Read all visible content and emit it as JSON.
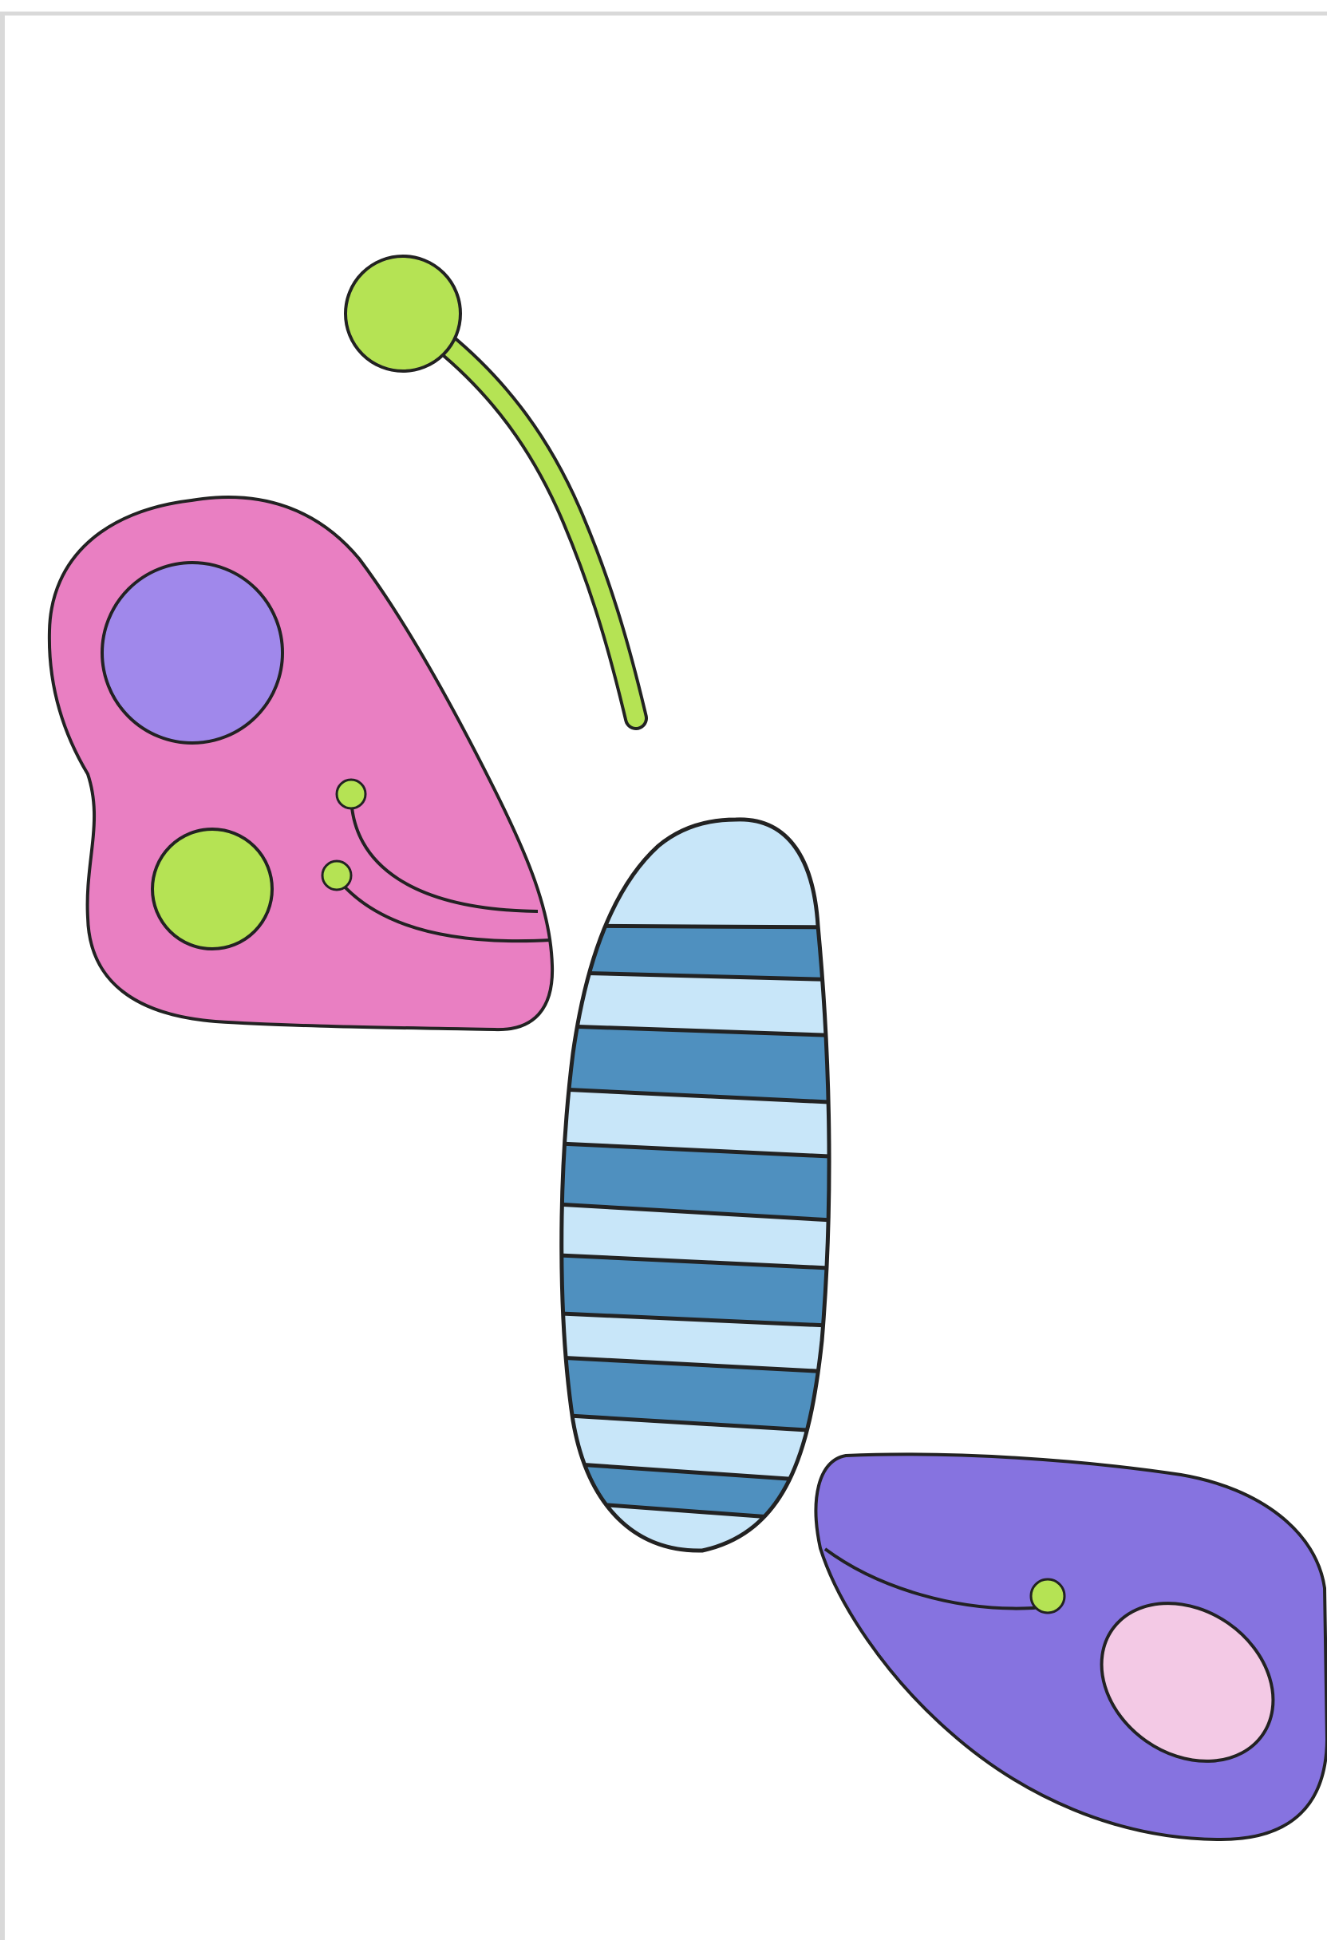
{
  "scene": {
    "subject": "butterfly-parts",
    "parts": [
      "antenna",
      "upper-wing",
      "striped-body",
      "lower-wing"
    ],
    "colors": {
      "background": "#ffffff",
      "frame": "#d9d9d9",
      "outline": "#222222",
      "antenna_green": "#b5e354",
      "wing_pink": "#e97fc2",
      "spot_purple": "#a088eb",
      "spot_green": "#b5e354",
      "body_light_blue": "#c8e6f9",
      "body_stripe_blue": "#4f90bf",
      "wing_purple": "#8673e0",
      "spot_light_pink": "#f3c9e5"
    }
  }
}
